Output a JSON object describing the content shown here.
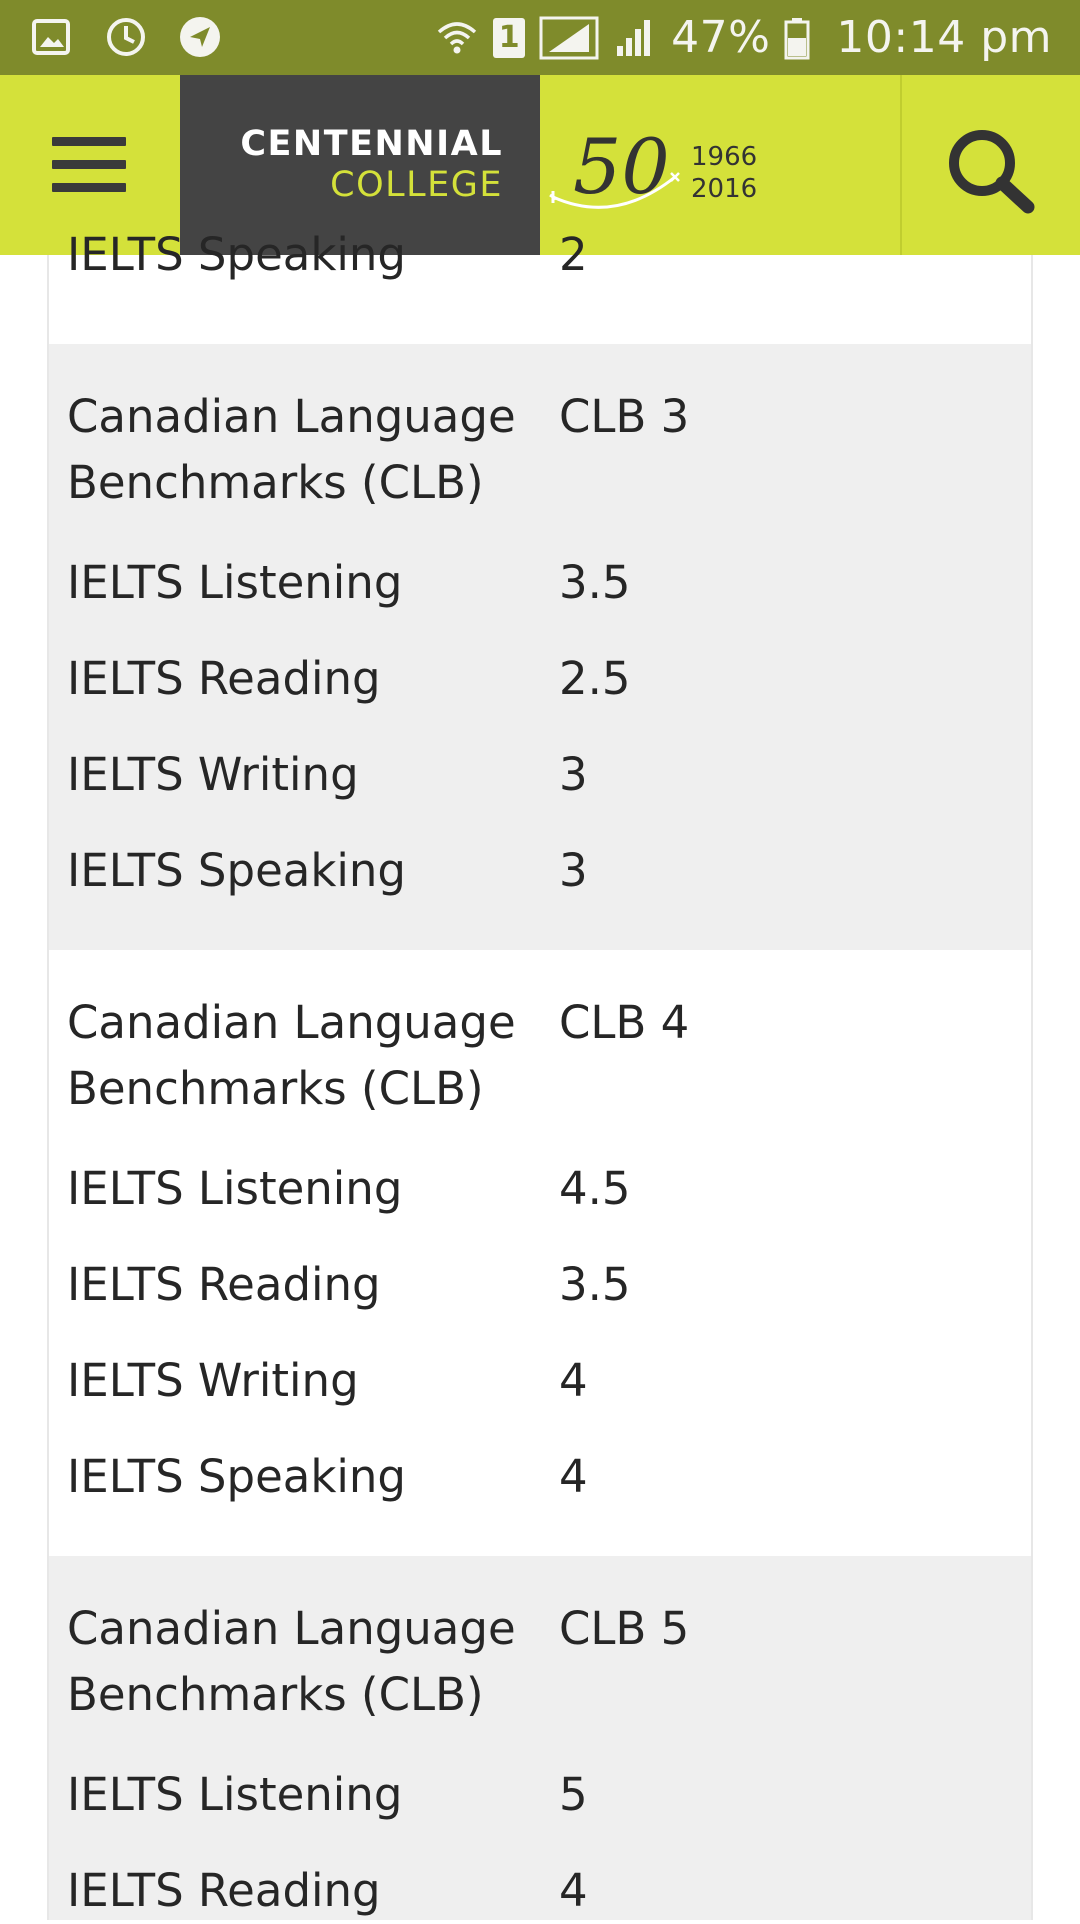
{
  "status_bar": {
    "battery": "47%",
    "time": "10:14 pm",
    "sim_slot": "1",
    "icons": [
      "gallery-icon",
      "alarm-clock-icon",
      "location-arrow-icon",
      "wifi-icon",
      "signal-icon",
      "battery-icon"
    ]
  },
  "header": {
    "logo_line1": "CENTENNIAL",
    "logo_line2": "COLLEGE",
    "anniversary_number": "50",
    "anniversary_year_start": "1966",
    "anniversary_year_end": "2016",
    "accent_color": "#d4e13a",
    "logo_bg_color": "#444444"
  },
  "table": {
    "partial_row": {
      "label": "IELTS Speaking",
      "value": "2"
    },
    "groups": [
      {
        "clb_label_line1": "Canadian Language",
        "clb_label_line2": "Benchmarks (CLB)",
        "clb_value": "CLB 3",
        "rows": [
          {
            "label": "IELTS Listening",
            "value": "3.5"
          },
          {
            "label": "IELTS Reading",
            "value": "2.5"
          },
          {
            "label": "IELTS Writing",
            "value": "3"
          },
          {
            "label": "IELTS Speaking",
            "value": "3"
          }
        ]
      },
      {
        "clb_label_line1": "Canadian Language",
        "clb_label_line2": "Benchmarks (CLB)",
        "clb_value": "CLB 4",
        "rows": [
          {
            "label": "IELTS Listening",
            "value": "4.5"
          },
          {
            "label": "IELTS Reading",
            "value": "3.5"
          },
          {
            "label": "IELTS Writing",
            "value": "4"
          },
          {
            "label": "IELTS Speaking",
            "value": "4"
          }
        ]
      },
      {
        "clb_label_line1": "Canadian Language",
        "clb_label_line2": "Benchmarks (CLB)",
        "clb_value": "CLB 5",
        "rows": [
          {
            "label": "IELTS Listening",
            "value": "5"
          },
          {
            "label": "IELTS Reading",
            "value": "4"
          }
        ]
      }
    ]
  }
}
